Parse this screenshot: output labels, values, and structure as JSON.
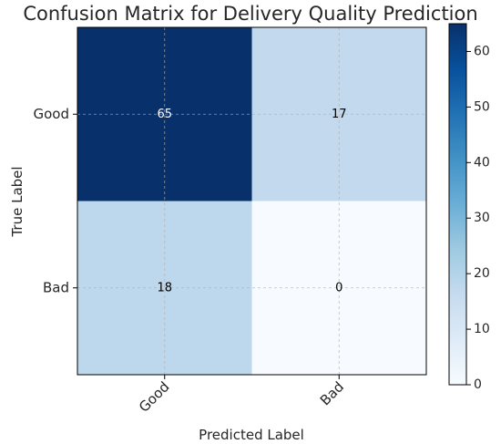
{
  "chart_data": {
    "type": "heatmap",
    "title": "Confusion Matrix for Delivery Quality Prediction",
    "xlabel": "Predicted Label",
    "ylabel": "True Label",
    "x_categories": [
      "Good",
      "Bad"
    ],
    "y_categories": [
      "Good",
      "Bad"
    ],
    "values": [
      [
        65,
        17
      ],
      [
        18,
        0
      ]
    ],
    "colormap": "Blues",
    "color_range": [
      0,
      65
    ],
    "colorbar_ticks": [
      0,
      10,
      20,
      30,
      40,
      50,
      60
    ],
    "colorbar_tick_labels": [
      "0",
      "10",
      "20",
      "30",
      "40",
      "50",
      "60"
    ],
    "grid": true
  }
}
